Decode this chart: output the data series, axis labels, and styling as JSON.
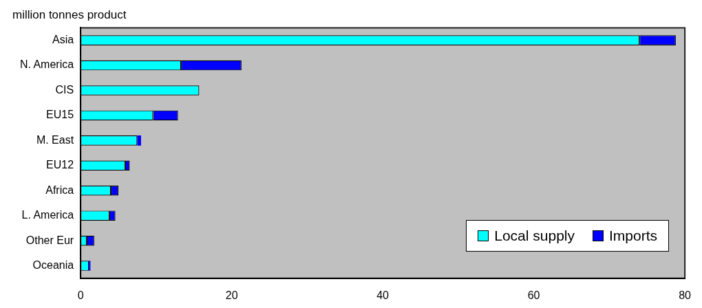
{
  "chart_data": {
    "type": "bar",
    "orientation": "horizontal",
    "stacked": true,
    "title": "million tonnes product",
    "categories": [
      "Asia",
      "N. America",
      "CIS",
      "EU15",
      "M. East",
      "EU12",
      "Africa",
      "L. America",
      "Other Eur",
      "Oceania"
    ],
    "series": [
      {
        "name": "Local supply",
        "color": "#00ffff",
        "values": [
          74.0,
          13.3,
          15.7,
          9.6,
          7.5,
          5.9,
          4.0,
          3.8,
          0.8,
          1.1
        ]
      },
      {
        "name": "Imports",
        "color": "#0000ff",
        "values": [
          4.8,
          8.0,
          null,
          3.3,
          0.5,
          0.6,
          1.0,
          0.8,
          1.0,
          0.2
        ]
      }
    ],
    "xlim": [
      0,
      80
    ],
    "xticks": [
      0,
      20,
      40,
      60,
      80
    ],
    "grid": false,
    "legend": "bottom right"
  }
}
